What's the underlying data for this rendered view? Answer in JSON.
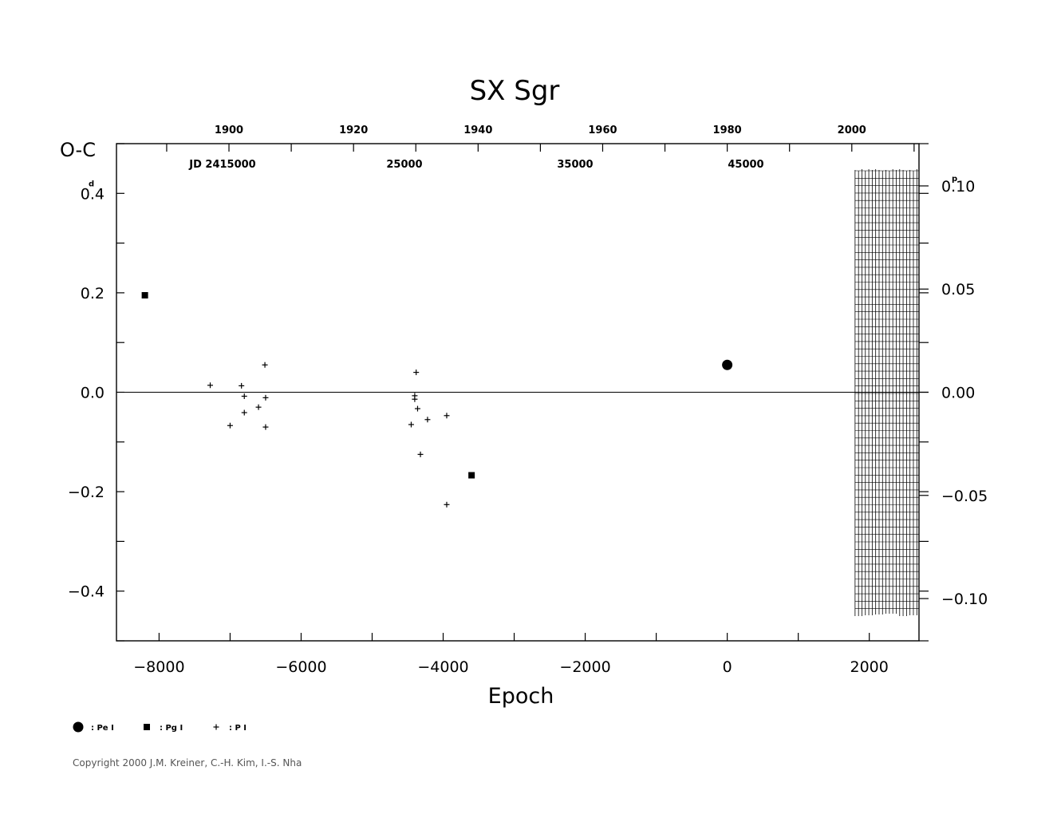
{
  "chart_data": {
    "type": "scatter",
    "title": "SX  Sgr",
    "xlabel": "Epoch",
    "ylabel": "O-C",
    "ylabel_unit": "d",
    "y2_unit": "p",
    "xlim": [
      -8600,
      2700
    ],
    "ylim": [
      -0.5,
      0.5
    ],
    "x_ticks": [
      -8000,
      -6000,
      -4000,
      -2000,
      0,
      2000
    ],
    "x_tick_labels": [
      "−8000",
      "−6000",
      "−4000",
      "−2000",
      "0",
      "2000"
    ],
    "y_ticks": [
      0.4,
      0.2,
      0.0,
      -0.2,
      -0.4
    ],
    "y_tick_labels": [
      "0.4",
      "0.2",
      "0.0",
      "−0.2",
      "−0.4"
    ],
    "y2_ticks": [
      0.1,
      0.05,
      0.0,
      -0.05,
      -0.1
    ],
    "y2_tick_labels": [
      "0.10",
      "0.05",
      "0.00",
      "−0.05",
      "−0.10"
    ],
    "top_year_ticks": [
      1900,
      1920,
      1940,
      1960,
      1980,
      2000
    ],
    "top_year_labels": [
      "1900",
      "1920",
      "1940",
      "1960",
      "1980",
      "2000"
    ],
    "jd_labels": [
      "JD  2415000",
      "25000",
      "35000",
      "45000"
    ],
    "series": [
      {
        "name": ": Pe I",
        "marker": "circle",
        "points": [
          [
            0,
            0.055
          ]
        ]
      },
      {
        "name": ": Pg I",
        "marker": "square",
        "points": [
          [
            -8200,
            0.195
          ],
          [
            -3600,
            -0.167
          ]
        ]
      },
      {
        "name": ": P I",
        "marker": "plus",
        "points": [
          [
            -7280,
            0.014
          ],
          [
            -6840,
            0.013
          ],
          [
            -6510,
            0.055
          ],
          [
            -6800,
            -0.008
          ],
          [
            -6500,
            -0.011
          ],
          [
            -6600,
            -0.03
          ],
          [
            -6800,
            -0.041
          ],
          [
            -7000,
            -0.067
          ],
          [
            -6500,
            -0.07
          ],
          [
            -4380,
            0.04
          ],
          [
            -4400,
            -0.007
          ],
          [
            -4400,
            -0.014
          ],
          [
            -4360,
            -0.033
          ],
          [
            -4220,
            -0.055
          ],
          [
            -3950,
            -0.047
          ],
          [
            -4450,
            -0.065
          ],
          [
            -4320,
            -0.125
          ],
          [
            -3950,
            -0.226
          ]
        ]
      }
    ],
    "hatched_region": {
      "x_from": 1800,
      "x_to": 2700,
      "note": ""
    }
  },
  "legend": {
    "items": [
      {
        "label": ": Pe I",
        "marker": "circle"
      },
      {
        "label": ": Pg I",
        "marker": "square"
      },
      {
        "label": ": P I",
        "marker": "plus"
      }
    ]
  },
  "footer": {
    "copyright": "Copyright 2000 J.M. Kreiner, C.-H. Kim, I.-S. Nha"
  }
}
